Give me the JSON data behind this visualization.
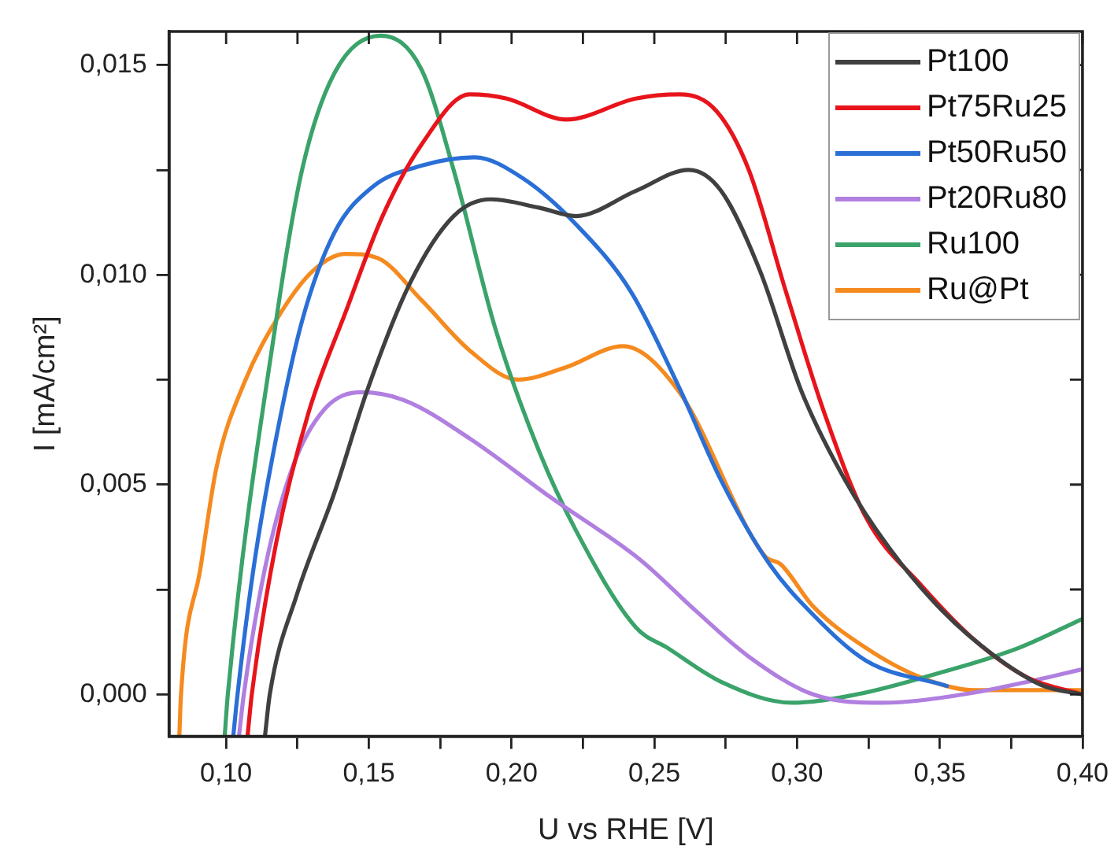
{
  "chart_data": {
    "type": "line",
    "xlabel": "U vs RHE [V]",
    "ylabel": "I [mA/cm²]",
    "xlim": [
      0.08,
      0.4
    ],
    "ylim": [
      -0.001,
      0.0158
    ],
    "xticks": [
      {
        "value": 0.1,
        "label": "0,10"
      },
      {
        "value": 0.125,
        "label": null
      },
      {
        "value": 0.15,
        "label": "0,15"
      },
      {
        "value": 0.175,
        "label": null
      },
      {
        "value": 0.2,
        "label": "0,20"
      },
      {
        "value": 0.225,
        "label": null
      },
      {
        "value": 0.25,
        "label": "0,25"
      },
      {
        "value": 0.275,
        "label": null
      },
      {
        "value": 0.3,
        "label": "0,30"
      },
      {
        "value": 0.325,
        "label": null
      },
      {
        "value": 0.35,
        "label": "0,35"
      },
      {
        "value": 0.375,
        "label": null
      },
      {
        "value": 0.4,
        "label": "0,40"
      }
    ],
    "yticks": [
      {
        "value": 0,
        "label": "0,000"
      },
      {
        "value": 0.0025,
        "label": null
      },
      {
        "value": 0.005,
        "label": "0,005"
      },
      {
        "value": 0.0075,
        "label": null
      },
      {
        "value": 0.01,
        "label": "0,010"
      },
      {
        "value": 0.0125,
        "label": null
      },
      {
        "value": 0.015,
        "label": "0,015"
      }
    ],
    "grid": false,
    "legend": "top right",
    "marker": "none",
    "line_style": "solid",
    "series": [
      {
        "name": "Pt100",
        "color": "#404040",
        "x": [
          0.1136,
          0.1153,
          0.1249,
          0.1379,
          0.1492,
          0.1644,
          0.1797,
          0.1927,
          0.2096,
          0.2226,
          0.2435,
          0.2621,
          0.2734,
          0.287,
          0.3017,
          0.3169,
          0.3322,
          0.3508,
          0.3695,
          0.3864,
          0.4
        ],
        "values": [
          -0.001,
          0,
          0.0024,
          0.0048,
          0.0072,
          0.0098,
          0.0114,
          0.0118,
          0.0116,
          0.0114,
          0.012,
          0.0125,
          0.012,
          0.0101,
          0.0072,
          0.0051,
          0.0035,
          0.002,
          0.0009,
          0.0002,
          0
        ]
      },
      {
        "name": "Pt75Ru25",
        "color": "#e8141c",
        "x": [
          0.1075,
          0.109,
          0.1175,
          0.1288,
          0.1418,
          0.1548,
          0.1684,
          0.1853,
          0.1983,
          0.2192,
          0.2435,
          0.2588,
          0.2718,
          0.2831,
          0.2961,
          0.3096,
          0.3243,
          0.3435,
          0.3621,
          0.3808,
          0.4
        ],
        "values": [
          -0.001,
          0,
          0.0036,
          0.0067,
          0.0091,
          0.0114,
          0.0131,
          0.0143,
          0.0142,
          0.0137,
          0.0142,
          0.0143,
          0.0139,
          0.0125,
          0.0096,
          0.0067,
          0.0042,
          0.0026,
          0.0013,
          0.0004,
          0
        ]
      },
      {
        "name": "Pt50Ru50",
        "color": "#2a6fd6",
        "x": [
          0.1025,
          0.104,
          0.1096,
          0.1175,
          0.1266,
          0.1379,
          0.1514,
          0.1684,
          0.187,
          0.204,
          0.2226,
          0.2418,
          0.2588,
          0.2734,
          0.2904,
          0.3056,
          0.3243,
          0.3525
        ],
        "values": [
          -0.001,
          0,
          0.003,
          0.0061,
          0.0089,
          0.011,
          0.0121,
          0.0126,
          0.0128,
          0.0123,
          0.0112,
          0.0096,
          0.0073,
          0.0051,
          0.0031,
          0.0019,
          0.0008,
          0.0002
        ]
      },
      {
        "name": "Pt20Ru80",
        "color": "#b07fe0",
        "x": [
          0.1045,
          0.1062,
          0.1136,
          0.1232,
          0.1345,
          0.1475,
          0.1627,
          0.1853,
          0.2136,
          0.2452,
          0.2644,
          0.2831,
          0.3056,
          0.33,
          0.3582,
          0.3808,
          0.4
        ],
        "values": [
          -0.001,
          0,
          0.003,
          0.0054,
          0.0068,
          0.0072,
          0.007,
          0.0061,
          0.0047,
          0.0032,
          0.002,
          0.0009,
          0,
          -0.0002,
          0,
          0.0003,
          0.0006
        ]
      },
      {
        "name": "Ru100",
        "color": "#3aa36a",
        "x": [
          0.0995,
          0.1006,
          0.1175,
          0.1266,
          0.1379,
          0.1542,
          0.1684,
          0.1797,
          0.1944,
          0.2096,
          0.2226,
          0.2435,
          0.2548,
          0.2734,
          0.2983,
          0.3209,
          0.3492,
          0.3774,
          0.4
        ],
        "values": [
          -0.001,
          0,
          0.0089,
          0.0125,
          0.0148,
          0.0157,
          0.0149,
          0.0125,
          0.0087,
          0.0058,
          0.0039,
          0.0016,
          0.0011,
          0.0003,
          -0.0002,
          0,
          0.0005,
          0.0011,
          0.0018
        ]
      },
      {
        "name": "Ru@Pt",
        "color": "#f58a1f",
        "x": [
          0.0836,
          0.0842,
          0.091,
          0.0966,
          0.1062,
          0.1192,
          0.1305,
          0.1418,
          0.1531,
          0.1684,
          0.1853,
          0.2023,
          0.2192,
          0.239,
          0.2588,
          0.2734,
          0.2887,
          0.2943,
          0.3056,
          0.3243,
          0.3435,
          0.3621,
          0.4
        ],
        "values": [
          -0.001,
          0,
          0.003,
          0.0054,
          0.0074,
          0.0091,
          0.0101,
          0.0105,
          0.0104,
          0.0094,
          0.0082,
          0.0075,
          0.0078,
          0.0083,
          0.0072,
          null,
          0.0033,
          0.0031,
          0.0021,
          0.0011,
          0.0004,
          0.0001,
          0.0001
        ]
      }
    ]
  }
}
